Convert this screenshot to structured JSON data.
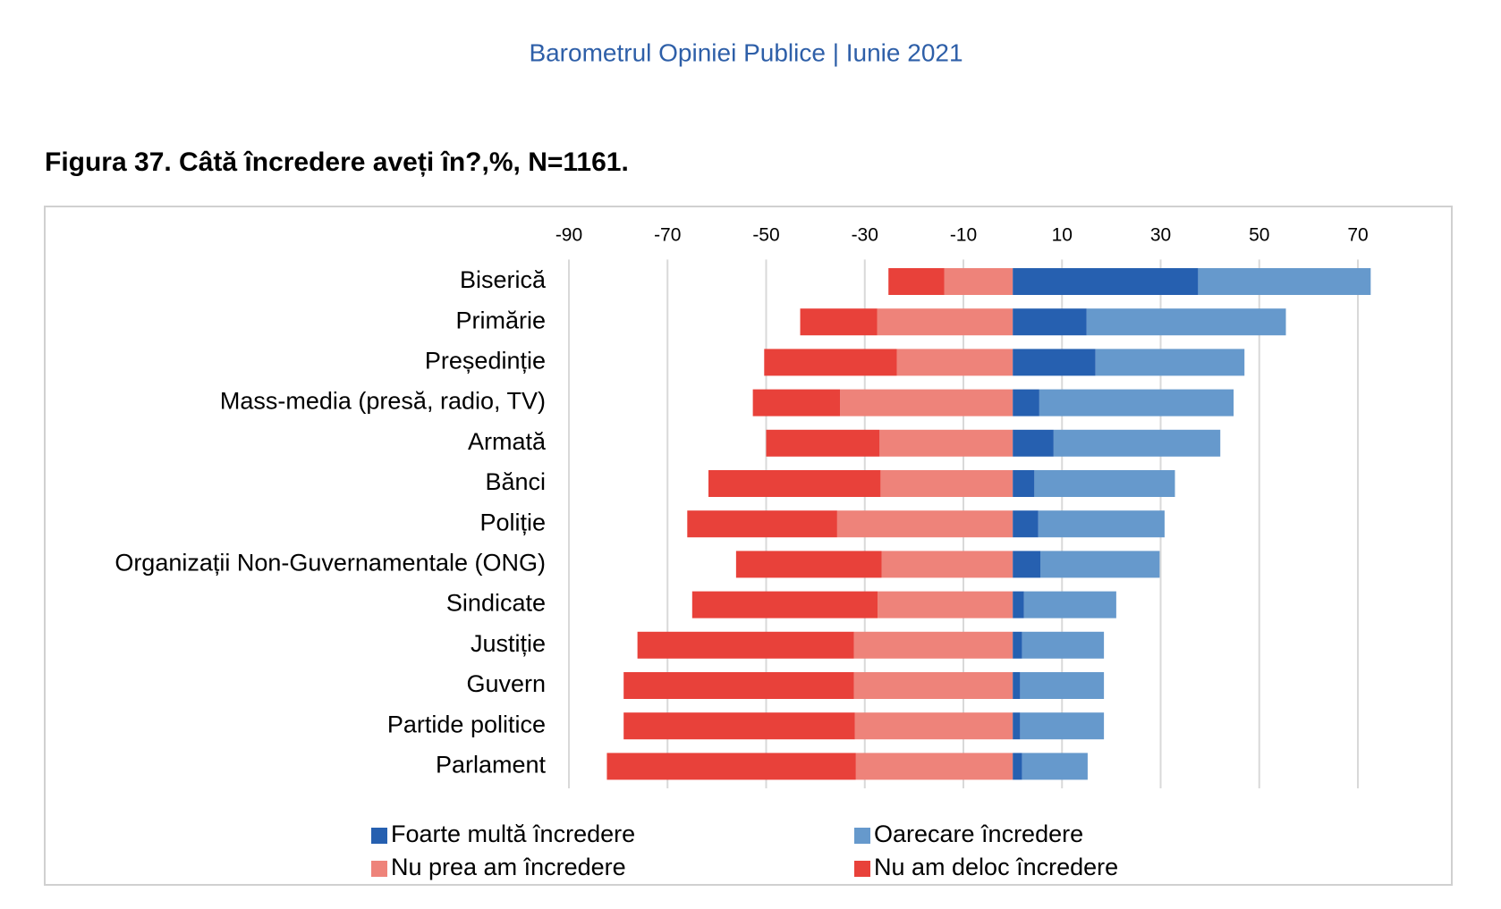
{
  "header": "Barometrul Opiniei Publice | Iunie 2021",
  "chart_data": {
    "type": "diverging_bar",
    "title": "Figura 37. Câtă încredere aveți în?,%, N=1161.",
    "categories": [
      "Biserică",
      "Primărie",
      "Președinție",
      "Mass-media (presă, radio, TV)",
      "Armată",
      "Bănci",
      "Poliție",
      "Organizații Non-Guvernamentale (ONG)",
      "Sindicate",
      "Justiție",
      "Guvern",
      "Partide politice",
      "Parlament"
    ],
    "series": [
      {
        "name": "Foarte multă încredere",
        "color": "#2660b0",
        "values": [
          37.6,
          15.0,
          16.8,
          5.4,
          8.3,
          4.4,
          5.2,
          5.6,
          2.3,
          1.9,
          1.5,
          1.5,
          1.9
        ]
      },
      {
        "name": "Oarecare încredere",
        "color": "#6699cc",
        "values": [
          35.0,
          40.4,
          30.2,
          39.4,
          33.8,
          28.5,
          25.6,
          24.2,
          18.7,
          16.6,
          17.0,
          17.0,
          13.3
        ]
      },
      {
        "name": "Nu prea am încredere",
        "color": "#ee837a",
        "values": [
          -13.9,
          -27.5,
          -23.5,
          -35.0,
          -27.0,
          -26.8,
          -35.6,
          -26.6,
          -27.4,
          -32.2,
          -32.2,
          -32.0,
          -31.8
        ]
      },
      {
        "name": "Nu am deloc încredere",
        "color": "#e8413a",
        "values": [
          -11.3,
          -15.6,
          -26.9,
          -17.7,
          -23.0,
          -34.9,
          -30.4,
          -29.5,
          -37.6,
          -43.9,
          -46.7,
          -46.9,
          -50.5
        ]
      }
    ],
    "xlim": [
      -90,
      70
    ],
    "xticks": [
      -90,
      -70,
      -50,
      -30,
      -10,
      10,
      30,
      50,
      70
    ],
    "grid": true
  }
}
